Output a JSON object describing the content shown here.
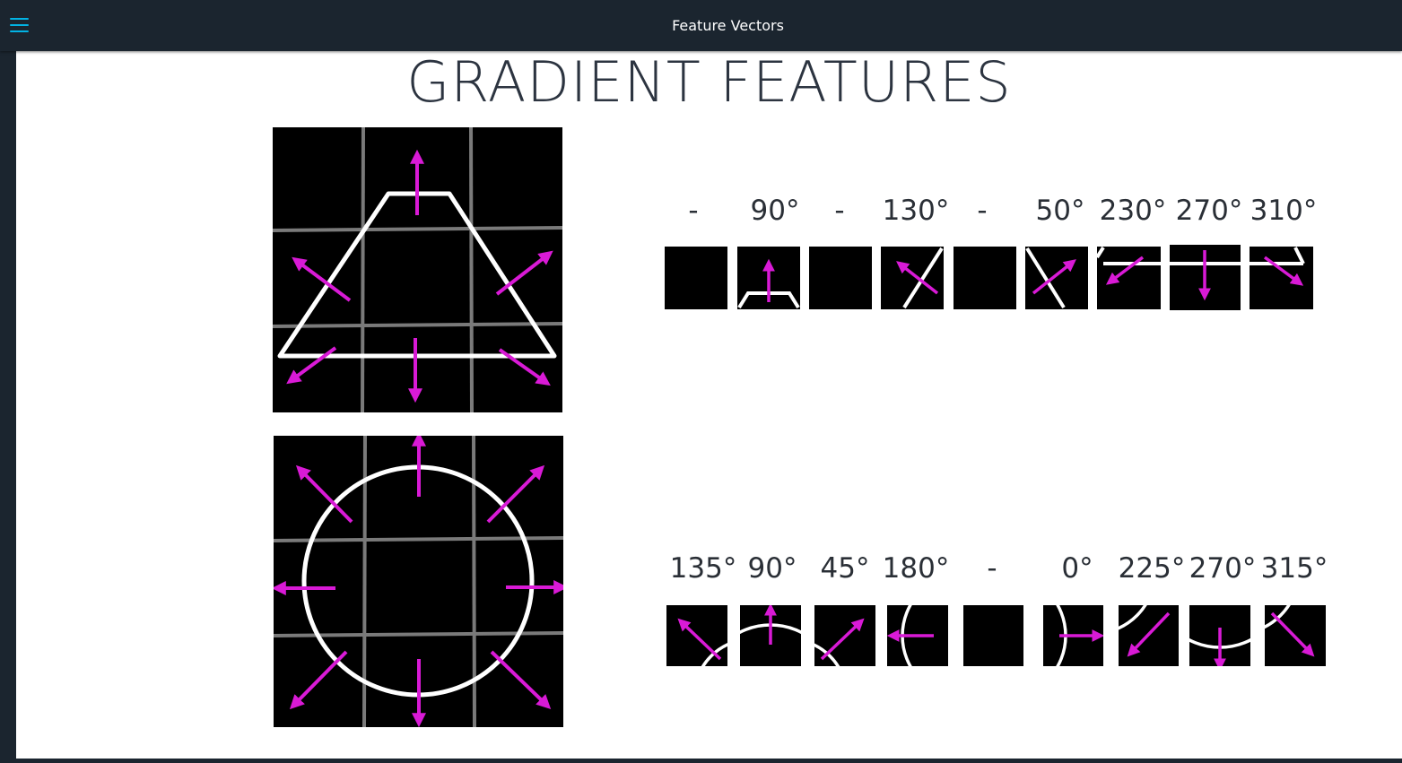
{
  "app": {
    "title": "Feature Vectors"
  },
  "slide": {
    "title": "GRADIENT FEATURES"
  },
  "icons": {
    "menu": "hamburger-menu-icon"
  },
  "colors": {
    "arrow": "#d91ad6",
    "edge": "#ffffff",
    "grid": "#7a7a7a",
    "cell": "#000000",
    "accent": "#02b3e4",
    "topbar": "#1b252f"
  },
  "rows": [
    {
      "name": "trapezoid",
      "labels": [
        "-",
        "90°",
        "-",
        "130°",
        "-",
        "50°",
        "230°",
        "270°",
        "310°"
      ]
    },
    {
      "name": "circle",
      "labels": [
        "135°",
        "90°",
        "45°",
        "180°",
        "-",
        "0°",
        "225°",
        "270°",
        "315°"
      ]
    }
  ]
}
